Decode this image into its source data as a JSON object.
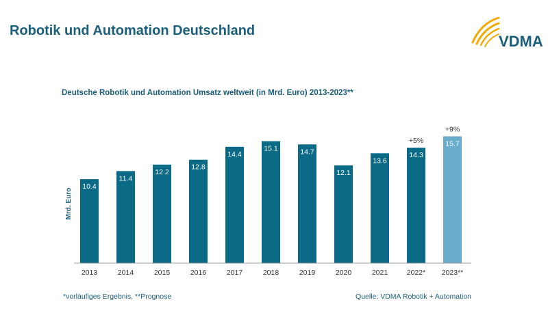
{
  "page_title": "Robotik und Automation Deutschland",
  "logo_text": "VDMA",
  "footnote": "*vorläufiges Ergebnis, **Prognose",
  "source": "Quelle: VDMA Robotik + Automation",
  "colors": {
    "title": "#1a5e7a",
    "bar_actual": "#0b6a86",
    "bar_forecast": "#6aaccb",
    "logo_arc": "#f2a900"
  },
  "chart_data": {
    "type": "bar",
    "title": "Deutsche Robotik und Automation Umsatz weltweit (in Mrd. Euro) 2013-2023**",
    "ylabel": "Mrd. Euro",
    "xlabel": "",
    "ylim": [
      0,
      16.5
    ],
    "grid": false,
    "categories": [
      "2013",
      "2014",
      "2015",
      "2016",
      "2017",
      "2018",
      "2019",
      "2020",
      "2021",
      "2022*",
      "2023**"
    ],
    "values": [
      10.4,
      11.4,
      12.2,
      12.8,
      14.4,
      15.1,
      14.7,
      12.1,
      13.6,
      14.3,
      15.7
    ],
    "value_labels": [
      "10.4",
      "11.4",
      "12.2",
      "12.8",
      "14.4",
      "15.1",
      "14.7",
      "12.1",
      "13.6",
      "14.3",
      "15.7"
    ],
    "forecast": [
      false,
      false,
      false,
      false,
      false,
      false,
      false,
      false,
      false,
      false,
      true
    ],
    "annotations": [
      {
        "category": "2022*",
        "text": "+5%"
      },
      {
        "category": "2023**",
        "text": "+9%"
      }
    ]
  }
}
